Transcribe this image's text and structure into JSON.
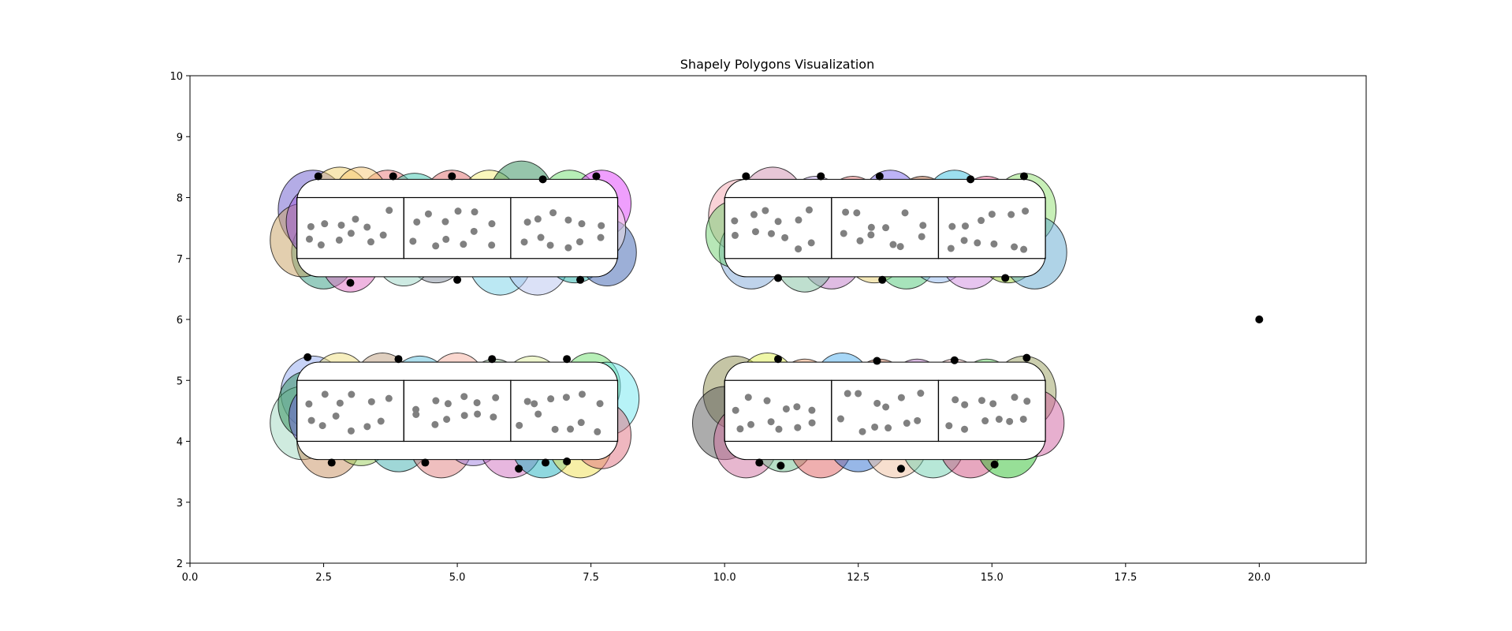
{
  "chart_data": {
    "type": "scatter",
    "title": "Shapely Polygons Visualization",
    "xlabel": "",
    "ylabel": "",
    "xlim": [
      0,
      22
    ],
    "ylim": [
      2,
      10
    ],
    "xticks": [
      "0.0",
      "2.5",
      "5.0",
      "7.5",
      "10.0",
      "12.5",
      "15.0",
      "17.5",
      "20.0"
    ],
    "yticks": [
      "2",
      "3",
      "4",
      "5",
      "6",
      "7",
      "8",
      "9",
      "10"
    ],
    "grid": false,
    "legend": "none",
    "colors": {
      "point": "#000000",
      "inner_dot": "#808080",
      "circle_edge": "#000000",
      "frame": "#000000",
      "panel": "#ffffff"
    },
    "groups": [
      {
        "box": {
          "x0": 2.0,
          "x1": 8.0,
          "y0": 6.7,
          "y1": 8.3
        },
        "circles": [
          {
            "x": 2.3,
            "y": 7.8,
            "r": 0.65,
            "color": "#6a5acd"
          },
          {
            "x": 2.8,
            "y": 7.9,
            "r": 0.6,
            "color": "#f2d16b"
          },
          {
            "x": 2.5,
            "y": 7.1,
            "r": 0.6,
            "color": "#2f9a7f"
          },
          {
            "x": 2.1,
            "y": 7.3,
            "r": 0.6,
            "color": "#c8a060"
          },
          {
            "x": 3.4,
            "y": 7.6,
            "r": 0.6,
            "color": "#4fbf7a"
          },
          {
            "x": 3.7,
            "y": 7.9,
            "r": 0.55,
            "color": "#e97676"
          },
          {
            "x": 3.0,
            "y": 7.0,
            "r": 0.55,
            "color": "#e06cc2"
          },
          {
            "x": 2.4,
            "y": 7.6,
            "r": 0.6,
            "color": "#9b59d6"
          },
          {
            "x": 4.2,
            "y": 7.8,
            "r": 0.6,
            "color": "#3ec8b0"
          },
          {
            "x": 4.6,
            "y": 7.2,
            "r": 0.6,
            "color": "#7f8c9b"
          },
          {
            "x": 4.9,
            "y": 7.9,
            "r": 0.55,
            "color": "#e06c6c"
          },
          {
            "x": 4.0,
            "y": 7.1,
            "r": 0.55,
            "color": "#9bd6c5"
          },
          {
            "x": 5.3,
            "y": 7.5,
            "r": 0.6,
            "color": "#a78bfa"
          },
          {
            "x": 5.6,
            "y": 7.9,
            "r": 0.55,
            "color": "#f5ef7a"
          },
          {
            "x": 5.8,
            "y": 7.0,
            "r": 0.6,
            "color": "#77d1e8"
          },
          {
            "x": 6.2,
            "y": 8.0,
            "r": 0.6,
            "color": "#2e8b57"
          },
          {
            "x": 6.5,
            "y": 7.0,
            "r": 0.6,
            "color": "#b8c4f0"
          },
          {
            "x": 6.7,
            "y": 7.7,
            "r": 0.6,
            "color": "#f08080"
          },
          {
            "x": 7.1,
            "y": 7.9,
            "r": 0.55,
            "color": "#6fe06f"
          },
          {
            "x": 7.2,
            "y": 7.2,
            "r": 0.6,
            "color": "#20b2aa"
          },
          {
            "x": 7.7,
            "y": 7.9,
            "r": 0.55,
            "color": "#e040fb"
          },
          {
            "x": 7.8,
            "y": 7.1,
            "r": 0.55,
            "color": "#3a5fb0"
          },
          {
            "x": 7.6,
            "y": 7.5,
            "r": 0.55,
            "color": "#f5e6e8"
          },
          {
            "x": 3.2,
            "y": 8.0,
            "r": 0.5,
            "color": "#f7c873"
          }
        ],
        "points": [
          [
            2.4,
            8.35
          ],
          [
            3.8,
            8.35
          ],
          [
            4.9,
            8.35
          ],
          [
            6.6,
            8.3
          ],
          [
            7.6,
            8.35
          ],
          [
            3.0,
            6.6
          ],
          [
            5.0,
            6.65
          ],
          [
            7.3,
            6.65
          ]
        ]
      },
      {
        "box": {
          "x0": 10.0,
          "x1": 16.0,
          "y0": 6.7,
          "y1": 8.3
        },
        "circles": [
          {
            "x": 10.3,
            "y": 7.7,
            "r": 0.6,
            "color": "#f4a6b0"
          },
          {
            "x": 10.5,
            "y": 7.1,
            "r": 0.6,
            "color": "#7fa7d8"
          },
          {
            "x": 10.9,
            "y": 7.9,
            "r": 0.6,
            "color": "#cf8fb0"
          },
          {
            "x": 11.2,
            "y": 7.3,
            "r": 0.6,
            "color": "#9bd07c"
          },
          {
            "x": 11.7,
            "y": 7.8,
            "r": 0.55,
            "color": "#b9a0e8"
          },
          {
            "x": 12.0,
            "y": 7.1,
            "r": 0.6,
            "color": "#c07ac8"
          },
          {
            "x": 12.4,
            "y": 7.8,
            "r": 0.55,
            "color": "#e07070"
          },
          {
            "x": 12.8,
            "y": 7.2,
            "r": 0.6,
            "color": "#e8d070"
          },
          {
            "x": 13.1,
            "y": 7.9,
            "r": 0.55,
            "color": "#7b68ee"
          },
          {
            "x": 13.4,
            "y": 7.1,
            "r": 0.6,
            "color": "#50c878"
          },
          {
            "x": 13.7,
            "y": 7.8,
            "r": 0.55,
            "color": "#a0522d"
          },
          {
            "x": 14.0,
            "y": 7.2,
            "r": 0.6,
            "color": "#8fb8f0"
          },
          {
            "x": 14.3,
            "y": 7.9,
            "r": 0.55,
            "color": "#3ac0e0"
          },
          {
            "x": 14.6,
            "y": 7.1,
            "r": 0.6,
            "color": "#d08ce0"
          },
          {
            "x": 14.9,
            "y": 7.8,
            "r": 0.55,
            "color": "#f06090"
          },
          {
            "x": 15.3,
            "y": 7.2,
            "r": 0.6,
            "color": "#9acd32"
          },
          {
            "x": 15.6,
            "y": 7.8,
            "r": 0.6,
            "color": "#90e070"
          },
          {
            "x": 15.8,
            "y": 7.1,
            "r": 0.6,
            "color": "#5fa8d0"
          },
          {
            "x": 10.2,
            "y": 7.4,
            "r": 0.55,
            "color": "#70d070"
          },
          {
            "x": 11.5,
            "y": 7.0,
            "r": 0.55,
            "color": "#7fbf9f"
          }
        ],
        "points": [
          [
            10.4,
            8.35
          ],
          [
            11.8,
            8.35
          ],
          [
            12.9,
            8.35
          ],
          [
            14.6,
            8.3
          ],
          [
            15.6,
            8.35
          ],
          [
            11.0,
            6.68
          ],
          [
            12.95,
            6.65
          ],
          [
            15.25,
            6.68
          ]
        ]
      },
      {
        "box": {
          "x0": 2.0,
          "x1": 8.0,
          "y0": 3.7,
          "y1": 5.3
        },
        "circles": [
          {
            "x": 2.3,
            "y": 4.8,
            "r": 0.6,
            "color": "#8fa8f0"
          },
          {
            "x": 2.1,
            "y": 4.3,
            "r": 0.6,
            "color": "#a0d8c0"
          },
          {
            "x": 2.6,
            "y": 4.0,
            "r": 0.6,
            "color": "#c89060"
          },
          {
            "x": 2.8,
            "y": 4.9,
            "r": 0.55,
            "color": "#f0e080"
          },
          {
            "x": 3.2,
            "y": 4.2,
            "r": 0.6,
            "color": "#9acd5a"
          },
          {
            "x": 3.6,
            "y": 4.9,
            "r": 0.55,
            "color": "#c0a080"
          },
          {
            "x": 3.9,
            "y": 4.1,
            "r": 0.6,
            "color": "#40b0b0"
          },
          {
            "x": 4.3,
            "y": 4.8,
            "r": 0.6,
            "color": "#5bc0de"
          },
          {
            "x": 4.7,
            "y": 4.0,
            "r": 0.6,
            "color": "#e08080"
          },
          {
            "x": 5.0,
            "y": 4.9,
            "r": 0.55,
            "color": "#f5b0a0"
          },
          {
            "x": 5.3,
            "y": 4.2,
            "r": 0.6,
            "color": "#a080e0"
          },
          {
            "x": 5.7,
            "y": 4.8,
            "r": 0.55,
            "color": "#8fbc8f"
          },
          {
            "x": 6.0,
            "y": 4.0,
            "r": 0.6,
            "color": "#d070c0"
          },
          {
            "x": 6.4,
            "y": 4.8,
            "r": 0.6,
            "color": "#e0f0a0"
          },
          {
            "x": 6.6,
            "y": 4.0,
            "r": 0.6,
            "color": "#20b2c0"
          },
          {
            "x": 7.0,
            "y": 4.7,
            "r": 0.55,
            "color": "#f08070"
          },
          {
            "x": 7.3,
            "y": 4.0,
            "r": 0.6,
            "color": "#f0e050"
          },
          {
            "x": 7.5,
            "y": 4.9,
            "r": 0.55,
            "color": "#70e070"
          },
          {
            "x": 7.8,
            "y": 4.7,
            "r": 0.6,
            "color": "#70e8f0"
          },
          {
            "x": 7.7,
            "y": 4.1,
            "r": 0.55,
            "color": "#e07080"
          },
          {
            "x": 2.2,
            "y": 4.6,
            "r": 0.55,
            "color": "#2e8b57"
          },
          {
            "x": 2.4,
            "y": 4.4,
            "r": 0.55,
            "color": "#6a5acd"
          }
        ],
        "points": [
          [
            2.2,
            5.38
          ],
          [
            3.9,
            5.35
          ],
          [
            5.65,
            5.35
          ],
          [
            7.05,
            5.35
          ],
          [
            2.65,
            3.65
          ],
          [
            4.4,
            3.65
          ],
          [
            6.15,
            3.55
          ],
          [
            6.65,
            3.65
          ],
          [
            7.05,
            3.67
          ]
        ]
      },
      {
        "box": {
          "x0": 10.0,
          "x1": 16.0,
          "y0": 3.7,
          "y1": 5.3
        },
        "circles": [
          {
            "x": 10.2,
            "y": 4.8,
            "r": 0.6,
            "color": "#8b8b4b"
          },
          {
            "x": 10.0,
            "y": 4.3,
            "r": 0.6,
            "color": "#5a5a5a"
          },
          {
            "x": 10.4,
            "y": 4.0,
            "r": 0.6,
            "color": "#d070a0"
          },
          {
            "x": 10.8,
            "y": 4.9,
            "r": 0.55,
            "color": "#e0f050"
          },
          {
            "x": 11.1,
            "y": 4.1,
            "r": 0.6,
            "color": "#70c090"
          },
          {
            "x": 11.5,
            "y": 4.8,
            "r": 0.55,
            "color": "#f0a070"
          },
          {
            "x": 11.8,
            "y": 4.0,
            "r": 0.6,
            "color": "#e06060"
          },
          {
            "x": 12.2,
            "y": 4.9,
            "r": 0.55,
            "color": "#50b0f0"
          },
          {
            "x": 12.5,
            "y": 4.1,
            "r": 0.6,
            "color": "#3070d0"
          },
          {
            "x": 12.9,
            "y": 4.8,
            "r": 0.55,
            "color": "#c07050"
          },
          {
            "x": 13.2,
            "y": 4.0,
            "r": 0.6,
            "color": "#f0c0a0"
          },
          {
            "x": 13.6,
            "y": 4.8,
            "r": 0.55,
            "color": "#b070c0"
          },
          {
            "x": 13.9,
            "y": 4.0,
            "r": 0.6,
            "color": "#70d0b0"
          },
          {
            "x": 14.3,
            "y": 4.8,
            "r": 0.55,
            "color": "#f5c0c0"
          },
          {
            "x": 14.6,
            "y": 4.0,
            "r": 0.6,
            "color": "#d05080"
          },
          {
            "x": 14.9,
            "y": 4.8,
            "r": 0.55,
            "color": "#60d060"
          },
          {
            "x": 15.3,
            "y": 4.0,
            "r": 0.6,
            "color": "#30c030"
          },
          {
            "x": 15.6,
            "y": 4.8,
            "r": 0.6,
            "color": "#9aa060"
          },
          {
            "x": 15.8,
            "y": 4.3,
            "r": 0.55,
            "color": "#d060a0"
          },
          {
            "x": 10.6,
            "y": 4.5,
            "r": 0.55,
            "color": "#a070d0"
          }
        ],
        "points": [
          [
            11.0,
            5.35
          ],
          [
            12.85,
            5.32
          ],
          [
            14.3,
            5.33
          ],
          [
            15.65,
            5.37
          ],
          [
            10.65,
            3.65
          ],
          [
            11.05,
            3.6
          ],
          [
            13.3,
            3.55
          ],
          [
            15.05,
            3.62
          ]
        ]
      }
    ],
    "cells": [
      {
        "x0": 2.0,
        "x1": 4.0,
        "y0": 7.0,
        "y1": 8.0
      },
      {
        "x0": 4.0,
        "x1": 6.0,
        "y0": 7.0,
        "y1": 8.0
      },
      {
        "x0": 6.0,
        "x1": 8.0,
        "y0": 7.0,
        "y1": 8.0
      },
      {
        "x0": 10.0,
        "x1": 12.0,
        "y0": 7.0,
        "y1": 8.0
      },
      {
        "x0": 12.0,
        "x1": 14.0,
        "y0": 7.0,
        "y1": 8.0
      },
      {
        "x0": 14.0,
        "x1": 16.0,
        "y0": 7.0,
        "y1": 8.0
      },
      {
        "x0": 2.0,
        "x1": 4.0,
        "y0": 4.0,
        "y1": 5.0
      },
      {
        "x0": 4.0,
        "x1": 6.0,
        "y0": 4.0,
        "y1": 5.0
      },
      {
        "x0": 6.0,
        "x1": 8.0,
        "y0": 4.0,
        "y1": 5.0
      },
      {
        "x0": 10.0,
        "x1": 12.0,
        "y0": 4.0,
        "y1": 5.0
      },
      {
        "x0": 12.0,
        "x1": 14.0,
        "y0": 4.0,
        "y1": 5.0
      },
      {
        "x0": 14.0,
        "x1": 16.0,
        "y0": 4.0,
        "y1": 5.0
      }
    ],
    "cell_dots_per_cell": 12,
    "extra_points": [
      [
        20.0,
        6.0
      ]
    ]
  }
}
